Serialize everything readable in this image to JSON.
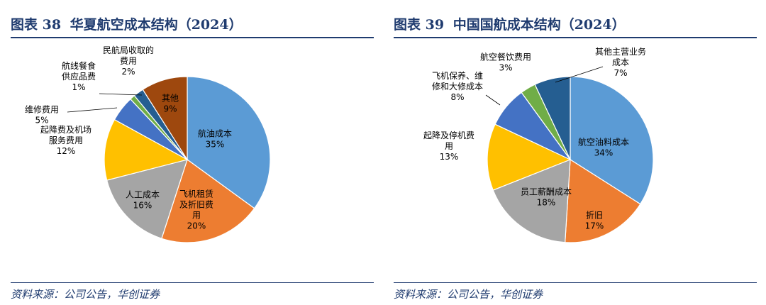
{
  "panels": [
    {
      "figure_label": "图表 38",
      "title": "华夏航空成本结构（2024）",
      "source": "资料来源：公司公告，华创证券"
    },
    {
      "figure_label": "图表 39",
      "title": "中国国航成本结构（2024）",
      "source": "资料来源：公司公告，华创证券"
    }
  ],
  "chart_data": [
    {
      "type": "pie",
      "title": "华夏航空成本结构（2024）",
      "start_angle_deg": 0,
      "direction": "clockwise",
      "slices": [
        {
          "label": "航油成本",
          "value": 35,
          "display": "35%",
          "color": "#5b9bd5",
          "label_lines": [
            "航油成本"
          ],
          "label_inside": true
        },
        {
          "label": "飞机租赁及折旧费用",
          "value": 20,
          "display": "20%",
          "color": "#ed7d31",
          "label_lines": [
            "飞机租赁",
            "及折旧费",
            "用"
          ],
          "label_inside": true
        },
        {
          "label": "人工成本",
          "value": 16,
          "display": "16%",
          "color": "#a5a5a5",
          "label_lines": [
            "人工成本"
          ],
          "label_inside": true
        },
        {
          "label": "起降费及机场服务费用",
          "value": 12,
          "display": "12%",
          "color": "#ffc000",
          "label_lines": [
            "起降费及机场",
            "服务费用"
          ],
          "label_inside": false
        },
        {
          "label": "维修费用",
          "value": 5,
          "display": "5%",
          "color": "#4472c4",
          "label_lines": [
            "维修费用"
          ],
          "label_inside": false
        },
        {
          "label": "航线餐食供应品费",
          "value": 1,
          "display": "1%",
          "color": "#70ad47",
          "label_lines": [
            "航线餐食",
            "供应品费"
          ],
          "label_inside": false
        },
        {
          "label": "民航局收取的费用",
          "value": 2,
          "display": "2%",
          "color": "#255e91",
          "label_lines": [
            "民航局收取的",
            "费用"
          ],
          "label_inside": false
        },
        {
          "label": "其他",
          "value": 9,
          "display": "9%",
          "color": "#9e480e",
          "label_lines": [
            "其他"
          ],
          "label_inside": true
        }
      ]
    },
    {
      "type": "pie",
      "title": "中国国航成本结构（2024）",
      "start_angle_deg": 0,
      "direction": "clockwise",
      "slices": [
        {
          "label": "航空油料成本",
          "value": 34,
          "display": "34%",
          "color": "#5b9bd5",
          "label_lines": [
            "航空油料成本"
          ],
          "label_inside": true
        },
        {
          "label": "折旧",
          "value": 17,
          "display": "17%",
          "color": "#ed7d31",
          "label_lines": [
            "折旧"
          ],
          "label_inside": true
        },
        {
          "label": "员工薪酬成本",
          "value": 18,
          "display": "18%",
          "color": "#a5a5a5",
          "label_lines": [
            "员工薪酬成本"
          ],
          "label_inside": true
        },
        {
          "label": "起降及停机费用",
          "value": 13,
          "display": "13%",
          "color": "#ffc000",
          "label_lines": [
            "起降及停机费",
            "用"
          ],
          "label_inside": false
        },
        {
          "label": "飞机保养、维修和大修成本",
          "value": 8,
          "display": "8%",
          "color": "#4472c4",
          "label_lines": [
            "飞机保养、维",
            "修和大修成本"
          ],
          "label_inside": false
        },
        {
          "label": "航空餐饮费用",
          "value": 3,
          "display": "3%",
          "color": "#70ad47",
          "label_lines": [
            "航空餐饮费用"
          ],
          "label_inside": false
        },
        {
          "label": "其他主营业务成本",
          "value": 7,
          "display": "7%",
          "color": "#255e91",
          "label_lines": [
            "其他主营业务",
            "成本"
          ],
          "label_inside": false
        }
      ]
    }
  ]
}
